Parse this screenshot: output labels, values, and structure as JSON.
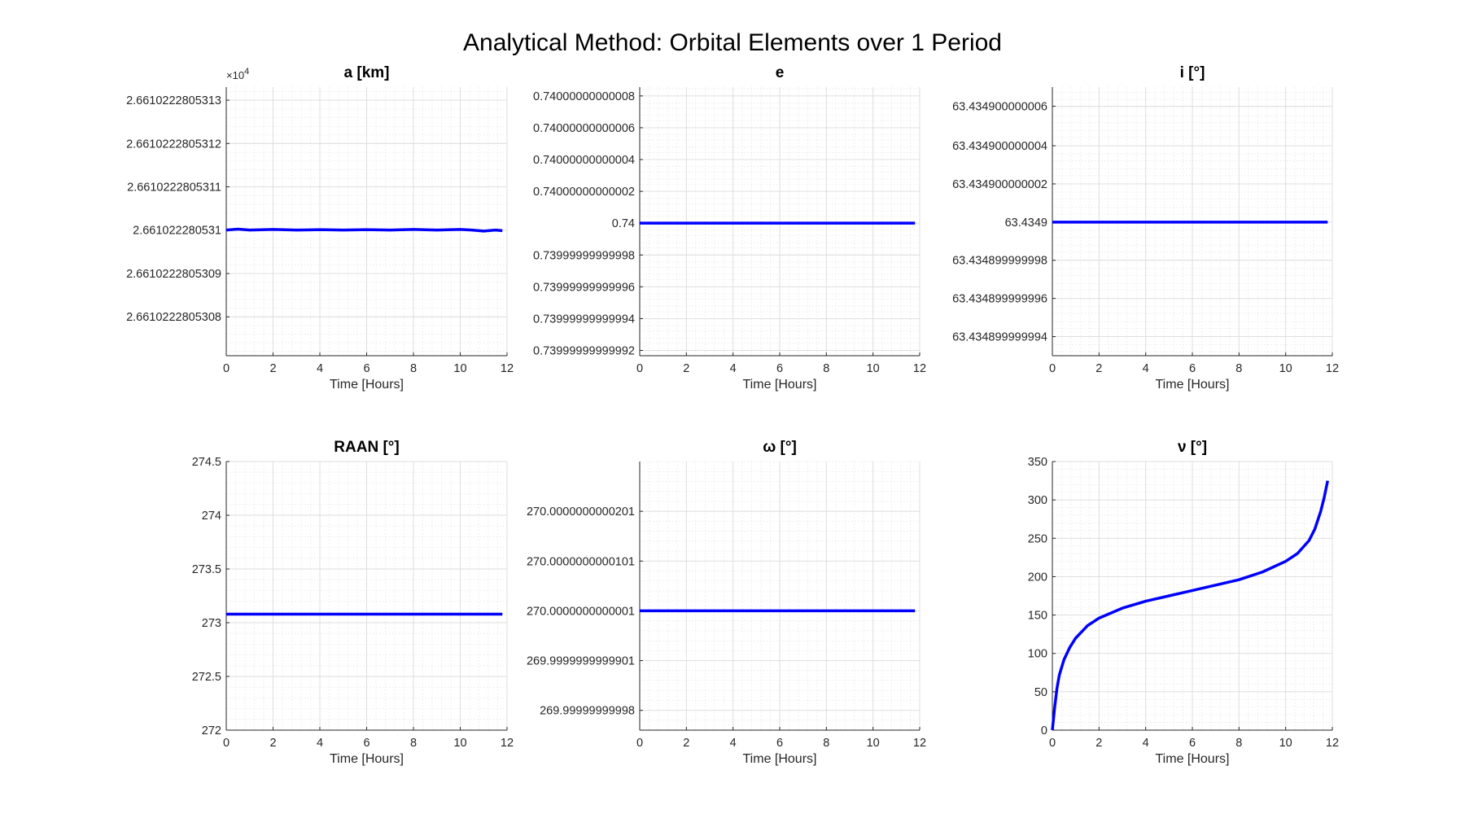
{
  "figure_title": "Analytical Method: Orbital Elements over 1 Period",
  "chart_data": [
    {
      "type": "line",
      "title": "a [km]",
      "xlabel": "Time [Hours]",
      "ylabel": "",
      "exponent_label": "×10",
      "exponent_power": "4",
      "xlim": [
        0,
        12
      ],
      "xticks": [
        "0",
        "2",
        "4",
        "6",
        "8",
        "10",
        "12"
      ],
      "ylim": [
        2.66102228053071,
        2.66102228053133
      ],
      "yticks": [
        {
          "value": 2.6610222805308,
          "label": "2.6610222805308"
        },
        {
          "value": 2.6610222805309,
          "label": "2.6610222805309"
        },
        {
          "value": 2.661022280531,
          "label": "2.661022280531"
        },
        {
          "value": 2.6610222805311,
          "label": "2.6610222805311"
        },
        {
          "value": 2.6610222805312,
          "label": "2.6610222805312"
        },
        {
          "value": 2.6610222805313,
          "label": "2.6610222805313"
        }
      ],
      "grid": true,
      "color": "#0000ff",
      "series": [
        {
          "x": [
            0,
            0.5,
            1,
            2,
            3,
            4,
            5,
            6,
            7,
            8,
            9,
            10,
            10.5,
            11,
            11.5,
            11.8
          ],
          "y": [
            2.661022280531,
            2.6610222805310024,
            2.661022280531,
            2.6610222805310015,
            2.661022280531,
            2.661022280531001,
            2.661022280531,
            2.661022280531001,
            2.661022280531,
            2.6610222805310015,
            2.661022280531,
            2.6610222805310015,
            2.661022280531,
            2.661022280530998,
            2.661022280531,
            2.661022280530999
          ]
        }
      ]
    },
    {
      "type": "line",
      "title": "e",
      "xlabel": "Time [Hours]",
      "ylabel": "",
      "xlim": [
        0,
        12
      ],
      "xticks": [
        "0",
        "2",
        "4",
        "6",
        "8",
        "10",
        "12"
      ],
      "ylim": [
        0.7399999999999917,
        0.7400000000000085
      ],
      "yticks": [
        {
          "value": 0.739999999999992,
          "label": "0.73999999999992"
        },
        {
          "value": 0.739999999999994,
          "label": "0.73999999999994"
        },
        {
          "value": 0.739999999999996,
          "label": "0.73999999999996"
        },
        {
          "value": 0.739999999999998,
          "label": "0.73999999999998"
        },
        {
          "value": 0.74,
          "label": "0.74"
        },
        {
          "value": 0.740000000000002,
          "label": "0.74000000000002"
        },
        {
          "value": 0.740000000000004,
          "label": "0.74000000000004"
        },
        {
          "value": 0.740000000000006,
          "label": "0.74000000000006"
        },
        {
          "value": 0.740000000000008,
          "label": "0.74000000000008"
        }
      ],
      "grid": true,
      "color": "#0000ff",
      "series": [
        {
          "x": [
            0,
            1,
            2,
            3,
            4,
            5,
            6,
            7,
            8,
            9,
            10,
            11,
            11.8
          ],
          "y": [
            0.74,
            0.74,
            0.74,
            0.74,
            0.74,
            0.74,
            0.74,
            0.74,
            0.74,
            0.74,
            0.74,
            0.74,
            0.74
          ]
        }
      ]
    },
    {
      "type": "line",
      "title": "i [°]",
      "xlabel": "Time [Hours]",
      "ylabel": "",
      "xlim": [
        0,
        12
      ],
      "xticks": [
        "0",
        "2",
        "4",
        "6",
        "8",
        "10",
        "12"
      ],
      "ylim": [
        63.4348999999993,
        63.4349000000007
      ],
      "yticks": [
        {
          "value": 63.4348999999994,
          "label": "63.434899999994"
        },
        {
          "value": 63.4348999999996,
          "label": "63.434899999996"
        },
        {
          "value": 63.4348999999998,
          "label": "63.434899999998"
        },
        {
          "value": 63.4349,
          "label": "63.4349"
        },
        {
          "value": 63.4349000000002,
          "label": "63.434900000002"
        },
        {
          "value": 63.4349000000004,
          "label": "63.434900000004"
        },
        {
          "value": 63.4349000000006,
          "label": "63.434900000006"
        }
      ],
      "grid": true,
      "color": "#0000ff",
      "series": [
        {
          "x": [
            0,
            2,
            4,
            6,
            8,
            10,
            11.8
          ],
          "y": [
            63.4349,
            63.4349,
            63.4349,
            63.4349,
            63.4349,
            63.4349,
            63.4349
          ]
        }
      ]
    },
    {
      "type": "line",
      "title": "RAAN [°]",
      "xlabel": "Time [Hours]",
      "ylabel": "",
      "xlim": [
        0,
        12
      ],
      "xticks": [
        "0",
        "2",
        "4",
        "6",
        "8",
        "10",
        "12"
      ],
      "ylim": [
        272,
        274.5
      ],
      "yticks": [
        {
          "value": 272,
          "label": "272"
        },
        {
          "value": 272.5,
          "label": "272.5"
        },
        {
          "value": 273,
          "label": "273"
        },
        {
          "value": 273.5,
          "label": "273.5"
        },
        {
          "value": 274,
          "label": "274"
        },
        {
          "value": 274.5,
          "label": "274.5"
        }
      ],
      "grid": true,
      "color": "#0000ff",
      "series": [
        {
          "x": [
            0,
            11.8
          ],
          "y": [
            273.08,
            273.08
          ]
        }
      ]
    },
    {
      "type": "line",
      "title": "ω [°]",
      "xlabel": "Time [Hours]",
      "ylabel": "",
      "xlim": [
        0,
        12
      ],
      "xticks": [
        "0",
        "2",
        "4",
        "6",
        "8",
        "10",
        "12"
      ],
      "ylim": [
        269.999999999976,
        270.00000000003
      ],
      "yticks": [
        {
          "value": 269.99999999998,
          "label": "269.99999999998"
        },
        {
          "value": 269.99999999999,
          "label": "269.9999999999901"
        },
        {
          "value": 270.0,
          "label": "270.0000000000001"
        },
        {
          "value": 270.00000000001,
          "label": "270.0000000000101"
        },
        {
          "value": 270.00000000002,
          "label": "270.0000000000201"
        }
      ],
      "grid": true,
      "color": "#0000ff",
      "series": [
        {
          "x": [
            0,
            11.8
          ],
          "y": [
            270.0,
            270.0
          ]
        }
      ]
    },
    {
      "type": "line",
      "title": "ν [°]",
      "xlabel": "Time [Hours]",
      "ylabel": "",
      "xlim": [
        0,
        12
      ],
      "xticks": [
        "0",
        "2",
        "4",
        "6",
        "8",
        "10",
        "12"
      ],
      "ylim": [
        0,
        350
      ],
      "yticks": [
        {
          "value": 0,
          "label": "0"
        },
        {
          "value": 50,
          "label": "50"
        },
        {
          "value": 100,
          "label": "100"
        },
        {
          "value": 150,
          "label": "150"
        },
        {
          "value": 200,
          "label": "200"
        },
        {
          "value": 250,
          "label": "250"
        },
        {
          "value": 300,
          "label": "300"
        },
        {
          "value": 350,
          "label": "350"
        }
      ],
      "grid": true,
      "color": "#0000ff",
      "series": [
        {
          "x": [
            0,
            0.1,
            0.2,
            0.3,
            0.5,
            0.75,
            1,
            1.5,
            2,
            3,
            4,
            5,
            6,
            7,
            8,
            9,
            10,
            10.5,
            11,
            11.25,
            11.5,
            11.65,
            11.8
          ],
          "y": [
            0,
            30,
            55,
            72,
            92,
            108,
            120,
            136,
            146,
            159,
            168,
            175,
            182,
            189,
            196,
            206,
            220,
            230,
            247,
            262,
            285,
            303,
            325
          ]
        }
      ]
    }
  ]
}
